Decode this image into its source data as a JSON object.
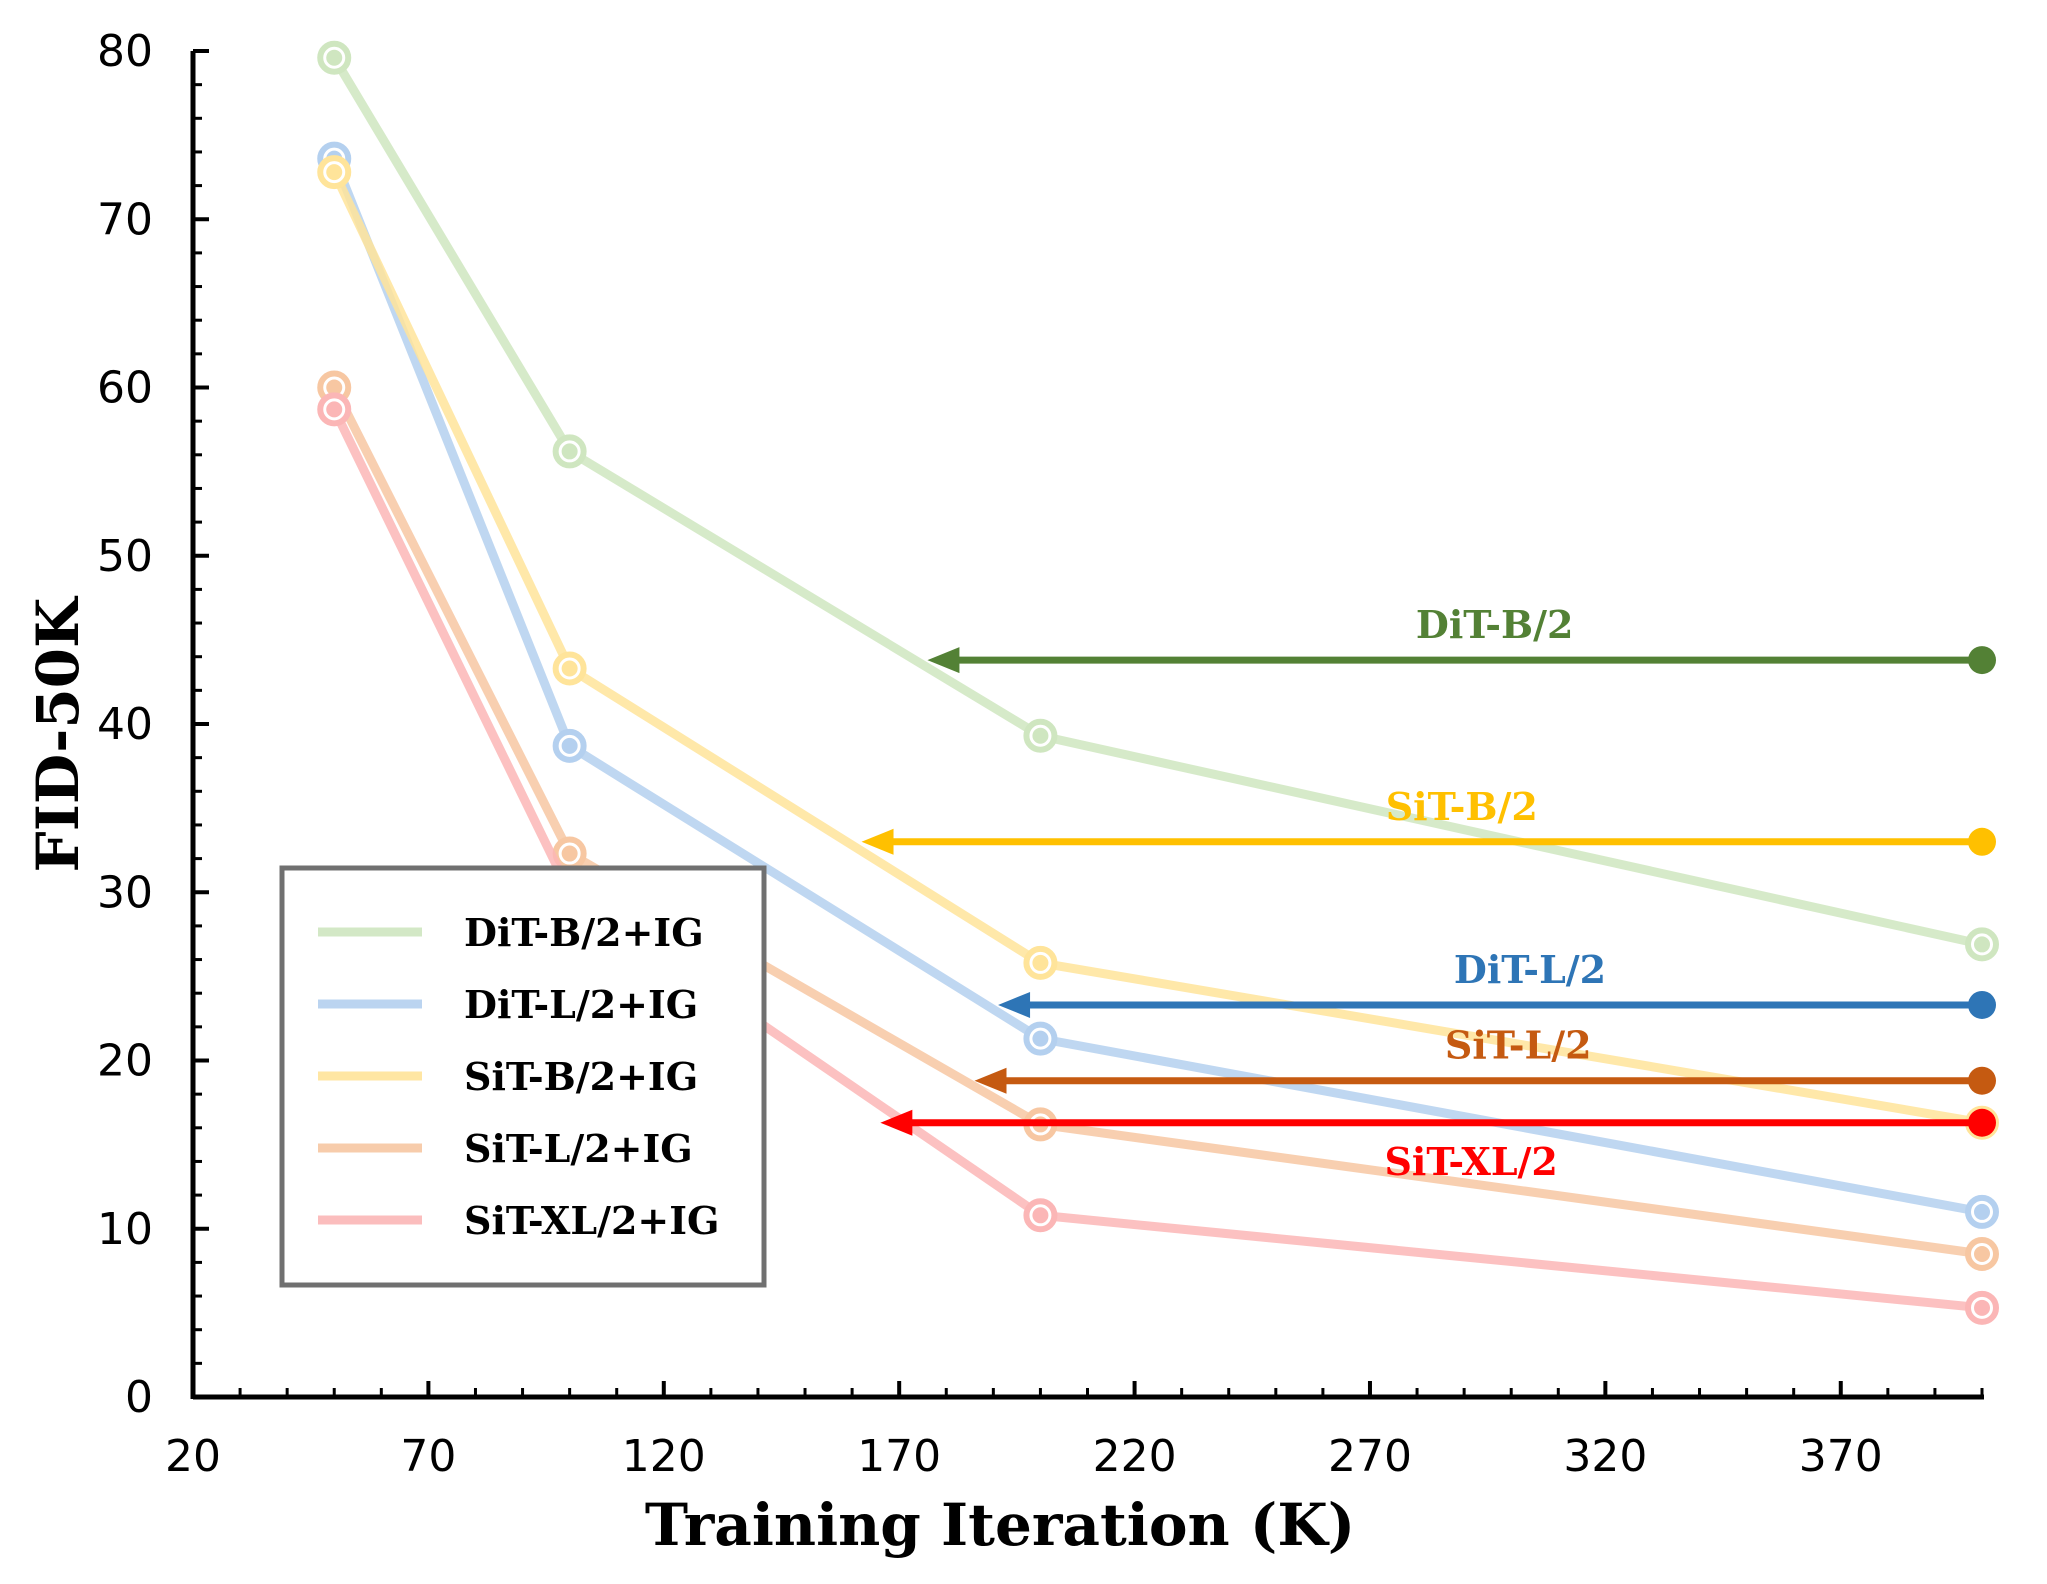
{
  "chart_data": {
    "type": "line",
    "xlabel": "Training Iteration (K)",
    "ylabel": "FID-50K",
    "xlim": [
      20,
      400
    ],
    "ylim": [
      0,
      80
    ],
    "xticks": [
      20,
      70,
      120,
      170,
      220,
      270,
      320,
      370
    ],
    "yticks": [
      0,
      10,
      20,
      30,
      40,
      50,
      60,
      70,
      80
    ],
    "x": [
      50,
      100,
      200,
      400
    ],
    "series": [
      {
        "name": "DiT-B/2+IG",
        "color": "#cfe6c0",
        "values": [
          79.6,
          56.2,
          39.3,
          26.9
        ]
      },
      {
        "name": "DiT-L/2+IG",
        "color": "#b4d0ef",
        "values": [
          73.6,
          38.7,
          21.3,
          11.0
        ]
      },
      {
        "name": "SiT-B/2+IG",
        "color": "#ffe49a",
        "values": [
          72.8,
          43.3,
          25.8,
          16.3
        ]
      },
      {
        "name": "SiT-L/2+IG",
        "color": "#f7c7a2",
        "values": [
          60.0,
          32.3,
          16.2,
          8.5
        ]
      },
      {
        "name": "SiT-XL/2+IG",
        "color": "#fbb6b6",
        "values": [
          58.7,
          30.0,
          10.8,
          5.3
        ]
      }
    ],
    "baselines": [
      {
        "name": "DiT-B/2",
        "color": "#538135",
        "value": 43.8,
        "x_from": 400,
        "x_to": 176,
        "label_pos": "above"
      },
      {
        "name": "SiT-B/2",
        "color": "#ffc000",
        "value": 33.0,
        "x_from": 400,
        "x_to": 162,
        "label_pos": "above"
      },
      {
        "name": "DiT-L/2",
        "color": "#2e75b6",
        "value": 23.3,
        "x_from": 400,
        "x_to": 191,
        "label_pos": "above"
      },
      {
        "name": "SiT-L/2",
        "color": "#c55a11",
        "value": 18.8,
        "x_from": 400,
        "x_to": 186,
        "label_pos": "above"
      },
      {
        "name": "SiT-XL/2",
        "color": "#ff0000",
        "value": 16.3,
        "x_from": 400,
        "x_to": 166,
        "label_pos": "below"
      }
    ],
    "legend_position": "bottom-left",
    "grid": false
  }
}
